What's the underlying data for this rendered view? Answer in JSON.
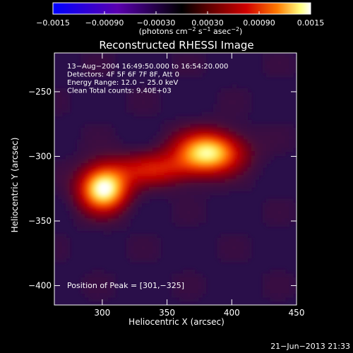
{
  "chart_data": {
    "type": "heatmap",
    "title": "Reconstructed RHESSI Image",
    "xlabel": "Heliocentric X (arcsec)",
    "ylabel": "Heliocentric Y (arcsec)",
    "xlim": [
      263,
      450
    ],
    "ylim": [
      -415,
      -220
    ],
    "xticks": [
      300,
      350,
      400,
      450
    ],
    "xtick_labels": [
      "300",
      "350",
      "400",
      "450"
    ],
    "yticks": [
      -250,
      -300,
      -350,
      -400
    ],
    "ytick_labels": [
      "−250",
      "−300",
      "−350",
      "−400"
    ],
    "colorbar": {
      "range": [
        -0.0015,
        0.0015
      ],
      "ticks": [
        -0.0015,
        -0.0009,
        -0.0003,
        0.0003,
        0.0009,
        0.0015
      ],
      "tick_labels": [
        "−0.0015",
        "−0.00090",
        "−0.00030",
        "0.00030",
        "0.00090",
        "0.0015"
      ],
      "label_main": "(photons cm",
      "label_exp1": "−2",
      "label_mid": " s",
      "label_exp2": "−1",
      "label_mid2": " asec",
      "label_exp3": "−2",
      "label_end": ")",
      "colors": [
        "#0000ff",
        "#5a00b0",
        "#000000",
        "#5a0000",
        "#d00000",
        "#ff7a00",
        "#ffff80",
        "#ffffff"
      ]
    },
    "annotations": [
      "13−Aug−2004 16:49:50.000 to 16:54:20.000",
      "Detectors: 4F 5F 6F 7F 8F, Att 0",
      "Energy Range: 12.0 − 25.0 keV",
      "Clean     Total counts: 9.40E+03"
    ],
    "peak_label": "Position of Peak = [301,−325]",
    "sources": [
      {
        "x": 301,
        "y": -325,
        "peak": 0.0015,
        "sigma_x": 13,
        "sigma_y": 12
      },
      {
        "x": 382,
        "y": -297,
        "peak": 0.00135,
        "sigma_x": 18,
        "sigma_y": 11
      },
      {
        "x": 340,
        "y": -310,
        "peak": 0.00065,
        "sigma_x": 22,
        "sigma_y": 9
      }
    ],
    "background": 4e-05
  },
  "timestamp": "21−Jun−2013 21:33"
}
